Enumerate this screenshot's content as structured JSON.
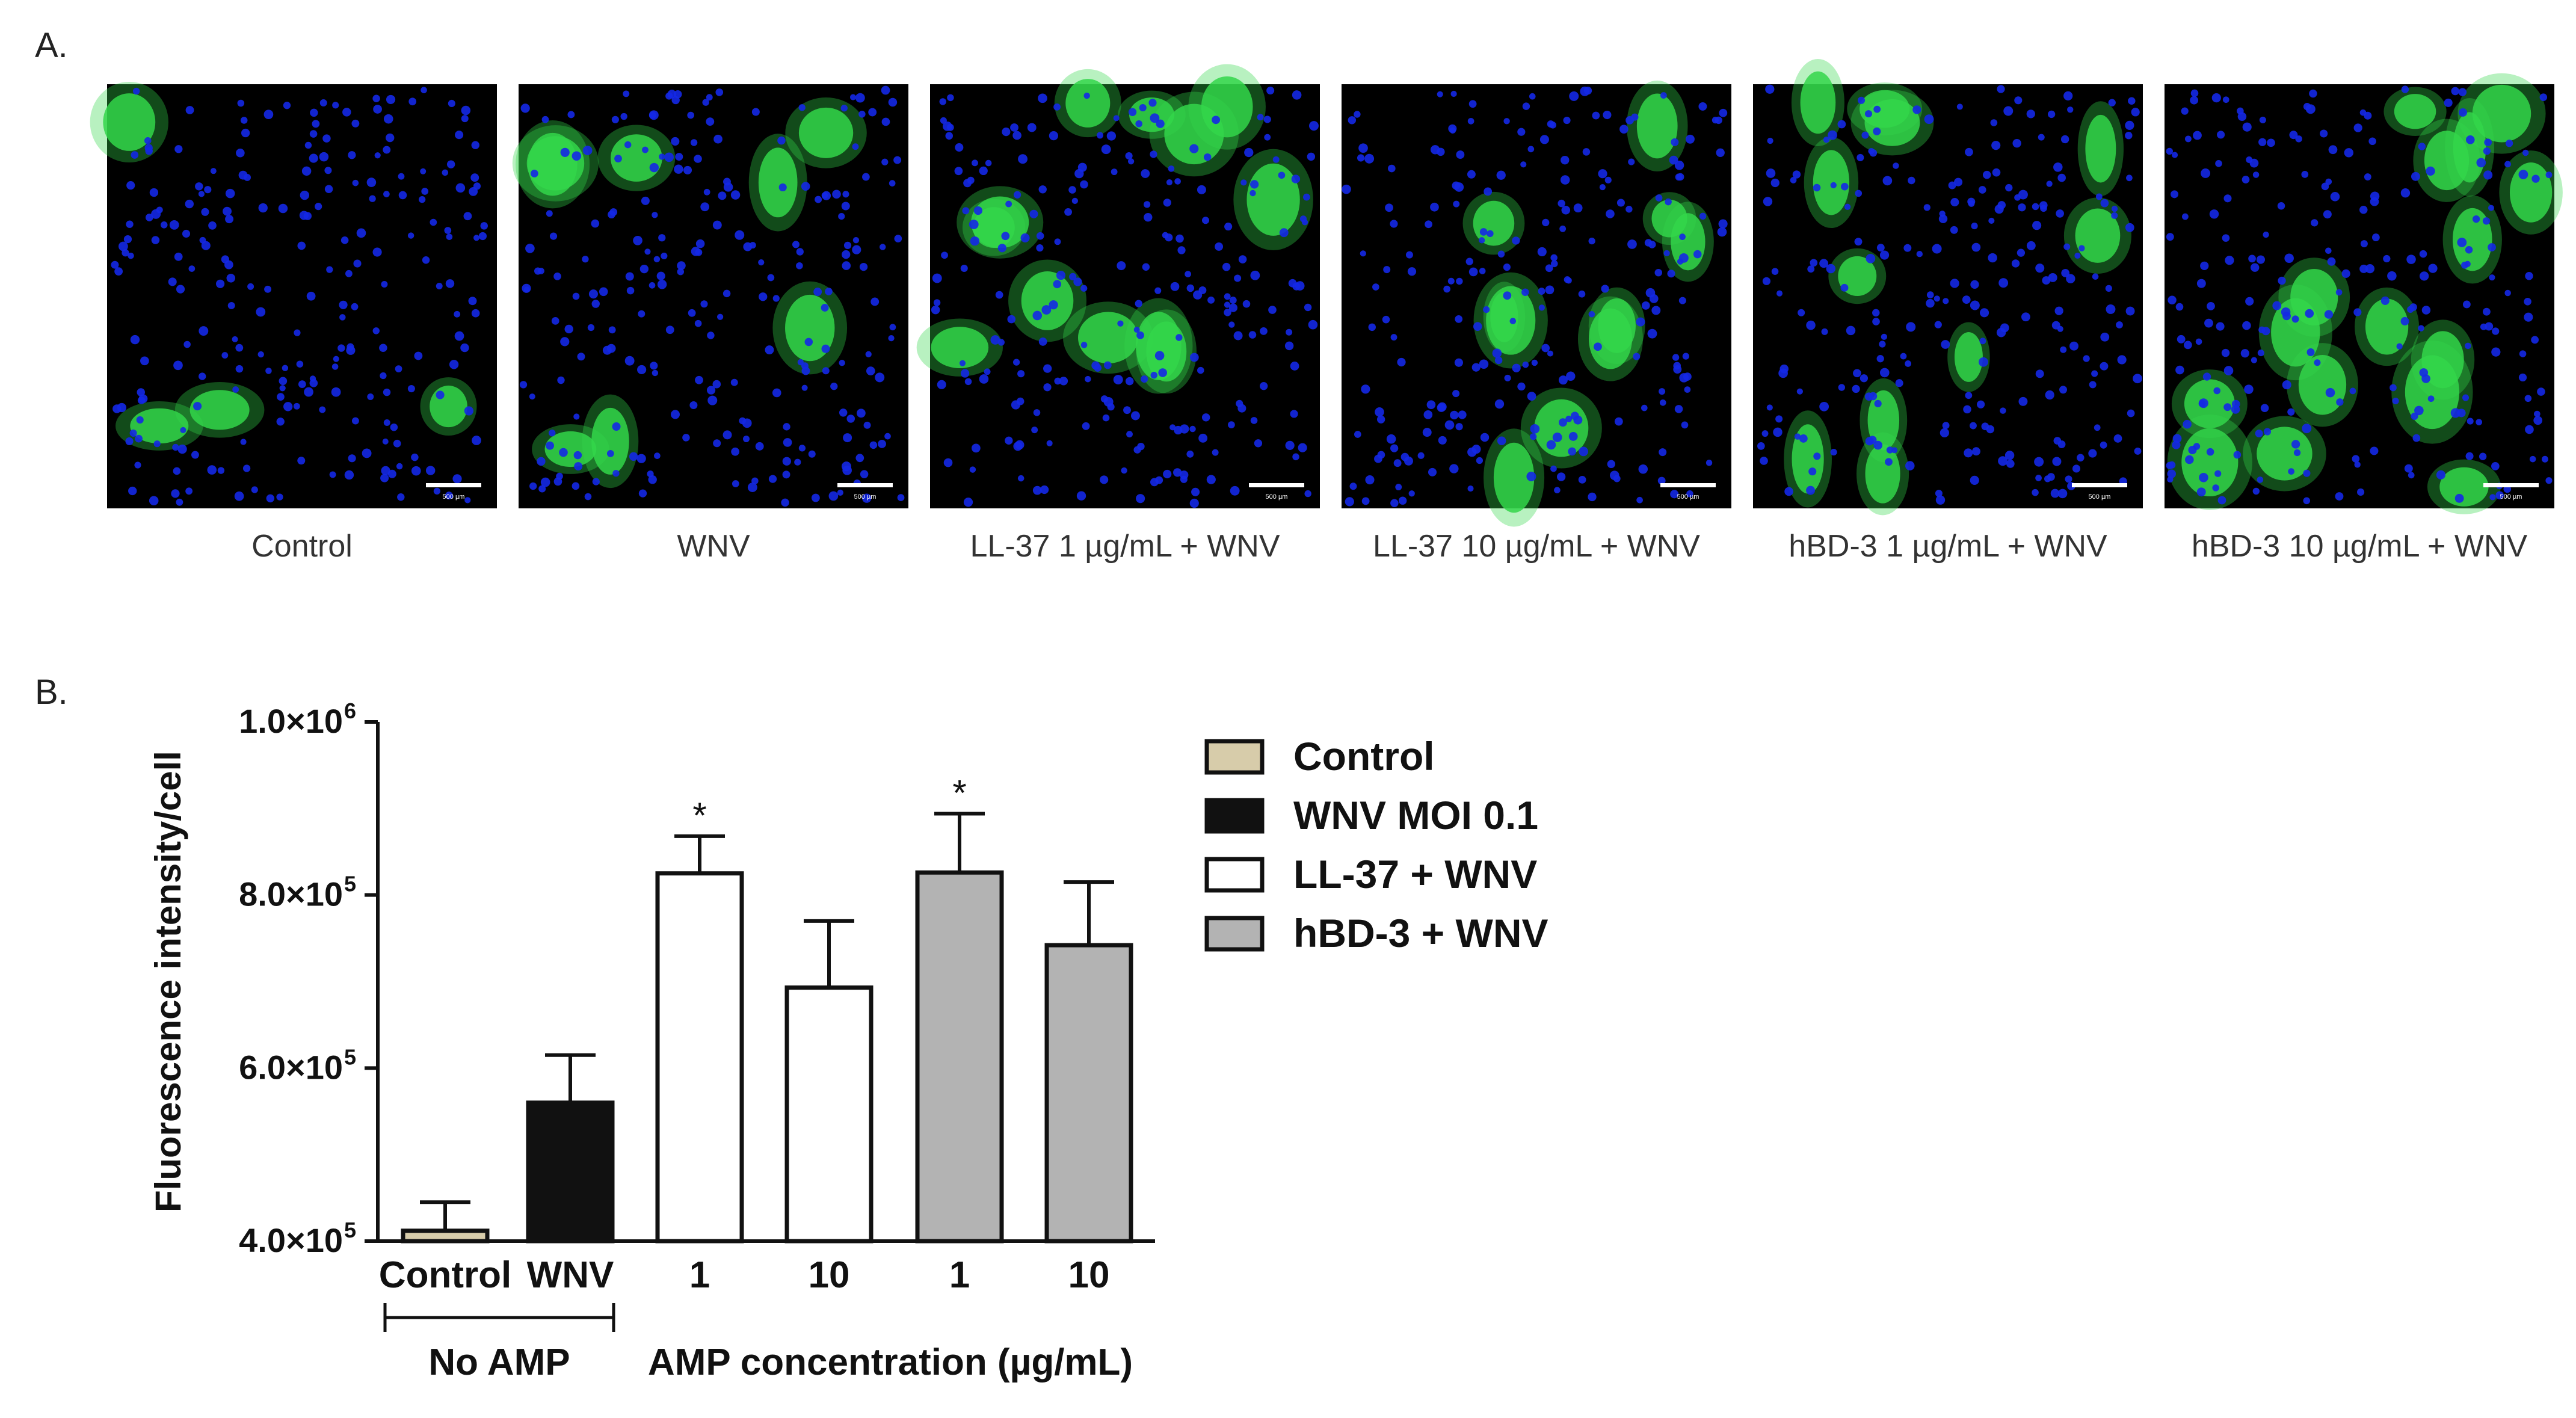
{
  "panel_a": {
    "label": "A.",
    "images": [
      {
        "caption": "Control",
        "green_cells": 4
      },
      {
        "caption": "WNV",
        "green_cells": 8
      },
      {
        "caption": "LL-37 1 µg/mL + WNV",
        "green_cells": 12
      },
      {
        "caption": "LL-37 10 µg/mL + WNV",
        "green_cells": 10
      },
      {
        "caption": "hBD-3 1 µg/mL + WNV",
        "green_cells": 11
      },
      {
        "caption": "hBD-3 10 µg/mL + WNV",
        "green_cells": 16
      }
    ],
    "scale_bar_text": "500 µm",
    "colors": {
      "background": "#000000",
      "nuclei": "#1428e6",
      "infected": "#33d64a"
    }
  },
  "panel_b": {
    "label": "B.",
    "group_labels": {
      "no_amp": "No AMP",
      "amp": "AMP concentration (µg/mL)"
    }
  },
  "chart_data": {
    "type": "bar",
    "title": "",
    "ylabel": "Fluorescence intensity/cell",
    "xlabel": "AMP concentration (µg/mL)",
    "ylim": [
      400000,
      1000000
    ],
    "yticks": [
      {
        "value": 400000,
        "mantissa": "4.0×10",
        "exp": "5"
      },
      {
        "value": 600000,
        "mantissa": "6.0×10",
        "exp": "5"
      },
      {
        "value": 800000,
        "mantissa": "8.0×10",
        "exp": "5"
      },
      {
        "value": 1000000,
        "mantissa": "1.0×10",
        "exp": "6"
      }
    ],
    "categories": [
      "Control",
      "WNV",
      "1",
      "10",
      "1",
      "10"
    ],
    "values": [
      412000,
      560000,
      825000,
      693000,
      826000,
      742000
    ],
    "errors": [
      33000,
      55000,
      43000,
      77000,
      68000,
      73000
    ],
    "bar_series": [
      "Control",
      "WNV MOI 0.1",
      "LL-37 + WNV",
      "LL-37 + WNV",
      "hBD-3 + WNV",
      "hBD-3 + WNV"
    ],
    "significance": [
      "",
      "",
      "*",
      "",
      "*",
      ""
    ],
    "legend": [
      {
        "name": "Control",
        "color": "#d7ccaa"
      },
      {
        "name": "WNV MOI 0.1",
        "color": "#111111"
      },
      {
        "name": "LL-37 + WNV",
        "color": "#ffffff"
      },
      {
        "name": "hBD-3 + WNV",
        "color": "#b3b3b3"
      }
    ],
    "legend_position": "right",
    "grid": false
  }
}
